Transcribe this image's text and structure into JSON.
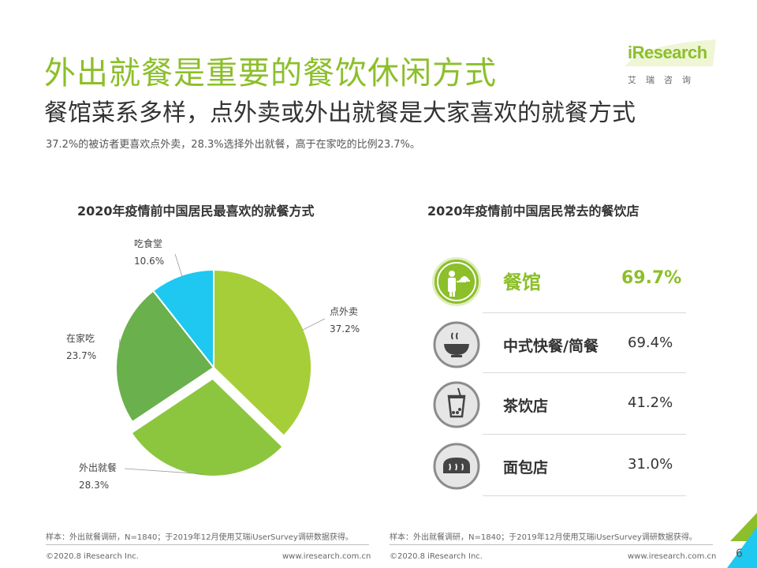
{
  "header": {
    "title": "外出就餐是重要的餐饮休闲方式",
    "subtitle": "餐馆菜系多样，点外卖或外出就餐是大家喜欢的就餐方式",
    "summary": "37.2%的被访者更喜欢点外卖，28.3%选择外出就餐，高于在家吃的比例23.7%。"
  },
  "logo": {
    "text": "iResearch",
    "sub": "艾瑞咨询"
  },
  "colors": {
    "accent": "#8cbf2a",
    "green_light": "#a6ce39",
    "green_mid": "#8cc63f",
    "green_dark": "#6ab04c",
    "cyan": "#1ec8f0"
  },
  "chart_data": [
    {
      "type": "pie",
      "title": "2020年疫情前中国居民最喜欢的就餐方式",
      "slices": [
        {
          "label": "点外卖",
          "value": 37.2,
          "display": "37.2%",
          "color": "#a6ce39",
          "exploded": false
        },
        {
          "label": "外出就餐",
          "value": 28.3,
          "display": "28.3%",
          "color": "#8cc63f",
          "exploded": true
        },
        {
          "label": "在家吃",
          "value": 23.7,
          "display": "23.7%",
          "color": "#6ab04c",
          "exploded": false
        },
        {
          "label": "吃食堂",
          "value": 10.6,
          "display": "10.6%",
          "color": "#1ec8f0",
          "exploded": false
        }
      ]
    },
    {
      "type": "table",
      "title": "2020年疫情前中国居民常去的餐饮店",
      "rows": [
        {
          "name": "餐馆",
          "value": 69.7,
          "display": "69.7%",
          "icon": "waiter-icon",
          "highlight": true
        },
        {
          "name": "中式快餐/简餐",
          "value": 69.4,
          "display": "69.4%",
          "icon": "bowl-icon",
          "highlight": false
        },
        {
          "name": "茶饮店",
          "value": 41.2,
          "display": "41.2%",
          "icon": "bubble-tea-icon",
          "highlight": false
        },
        {
          "name": "面包店",
          "value": 31.0,
          "display": "31.0%",
          "icon": "bread-icon",
          "highlight": false
        }
      ]
    }
  ],
  "footer": {
    "source": "样本：外出就餐调研，N=1840；于2019年12月使用艾瑞iUserSurvey调研数据获得。",
    "copyright": "©2020.8 iResearch Inc.",
    "url": "www.iresearch.com.cn",
    "page": "6"
  }
}
